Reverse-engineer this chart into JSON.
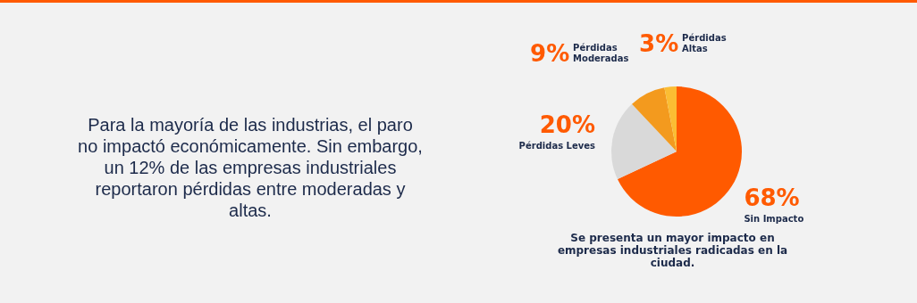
{
  "chart_data": {
    "type": "pie",
    "categories": [
      "Sin Impacto",
      "Pérdidas Leves",
      "Pérdidas Moderadas",
      "Pérdidas Altas"
    ],
    "values": [
      68,
      20,
      9,
      3
    ],
    "colors": [
      "#ff5a00",
      "#d9d9d9",
      "#f39a1e",
      "#fbbd33"
    ],
    "value_labels": [
      "68%",
      "20%",
      "9%",
      "3%"
    ],
    "annotations": [
      "Para la mayoría de las industrias, el paro no impactó económicamente. Sin embargo, un 12% de las empresas industriales reportaron pérdidas entre moderadas y altas.",
      "Se presenta un mayor impacto en empresas industriales radicadas en la ciudad."
    ],
    "legend": false
  }
}
